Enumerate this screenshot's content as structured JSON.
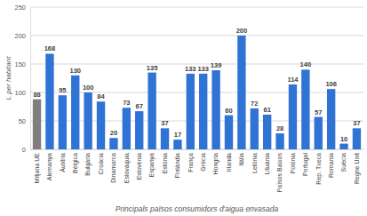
{
  "chart_data": {
    "type": "bar",
    "x_label": "Principals països consumidors d'aigua envasada",
    "y_label": "L per habitant",
    "categories": [
      "Mitjana UE",
      "Alemanya",
      "Àustria",
      "Bèlgica",
      "Bulgària",
      "Croàcia",
      "Dinamarca",
      "Eslovàquia",
      "Eslovènia",
      "Espanya",
      "Estònia",
      "Finlàndia",
      "França",
      "Grècia",
      "Hongria",
      "Irlanda",
      "Itàlia",
      "Letònia",
      "Lituània",
      "Països Baixos",
      "Polònia",
      "Portugal",
      "Rep. Txeca",
      "Romania",
      "Suècia",
      "Regne Unit"
    ],
    "values": [
      88,
      168,
      95,
      130,
      100,
      84,
      20,
      73,
      67,
      135,
      37,
      17,
      133,
      133,
      139,
      60,
      200,
      72,
      61,
      28,
      114,
      140,
      57,
      106,
      10,
      37
    ],
    "colors": [
      "#7f7f7f",
      "#2f73d4",
      "#2f73d4",
      "#2f73d4",
      "#2f73d4",
      "#2f73d4",
      "#2f73d4",
      "#2f73d4",
      "#2f73d4",
      "#2f73d4",
      "#2f73d4",
      "#2f73d4",
      "#2f73d4",
      "#2f73d4",
      "#2f73d4",
      "#2f73d4",
      "#2f73d4",
      "#2f73d4",
      "#2f73d4",
      "#2f73d4",
      "#2f73d4",
      "#2f73d4",
      "#2f73d4",
      "#2f73d4",
      "#2f73d4",
      "#2f73d4"
    ],
    "ylim": [
      0,
      250
    ],
    "yticks": [
      0,
      50,
      100,
      150,
      200,
      250
    ],
    "grid": true,
    "data_labels": true
  }
}
